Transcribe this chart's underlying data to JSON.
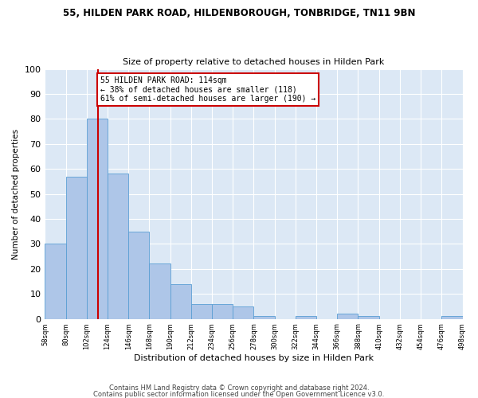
{
  "title1": "55, HILDEN PARK ROAD, HILDENBOROUGH, TONBRIDGE, TN11 9BN",
  "title2": "Size of property relative to detached houses in Hilden Park",
  "xlabel": "Distribution of detached houses by size in Hilden Park",
  "ylabel": "Number of detached properties",
  "bins": [
    58,
    80,
    102,
    124,
    146,
    168,
    190,
    212,
    234,
    256,
    278,
    300,
    322,
    344,
    366,
    388,
    410,
    432,
    454,
    476,
    498
  ],
  "counts": [
    30,
    57,
    80,
    58,
    35,
    22,
    14,
    6,
    6,
    5,
    1,
    0,
    1,
    0,
    2,
    1,
    0,
    0,
    0,
    1
  ],
  "bar_color": "#aec6e8",
  "bar_edge_color": "#5a9fd4",
  "property_size": 114,
  "vline_color": "#cc0000",
  "annotation_text": "55 HILDEN PARK ROAD: 114sqm\n← 38% of detached houses are smaller (118)\n61% of semi-detached houses are larger (190) →",
  "annotation_box_color": "#ffffff",
  "annotation_box_edge": "#cc0000",
  "ylim": [
    0,
    100
  ],
  "yticks": [
    0,
    10,
    20,
    30,
    40,
    50,
    60,
    70,
    80,
    90,
    100
  ],
  "tick_labels": [
    "58sqm",
    "80sqm",
    "102sqm",
    "124sqm",
    "146sqm",
    "168sqm",
    "190sqm",
    "212sqm",
    "234sqm",
    "256sqm",
    "278sqm",
    "300sqm",
    "322sqm",
    "344sqm",
    "366sqm",
    "388sqm",
    "410sqm",
    "432sqm",
    "454sqm",
    "476sqm",
    "498sqm"
  ],
  "footnote1": "Contains HM Land Registry data © Crown copyright and database right 2024.",
  "footnote2": "Contains public sector information licensed under the Open Government Licence v3.0.",
  "background_color": "#dce8f5",
  "fig_background": "#ffffff"
}
